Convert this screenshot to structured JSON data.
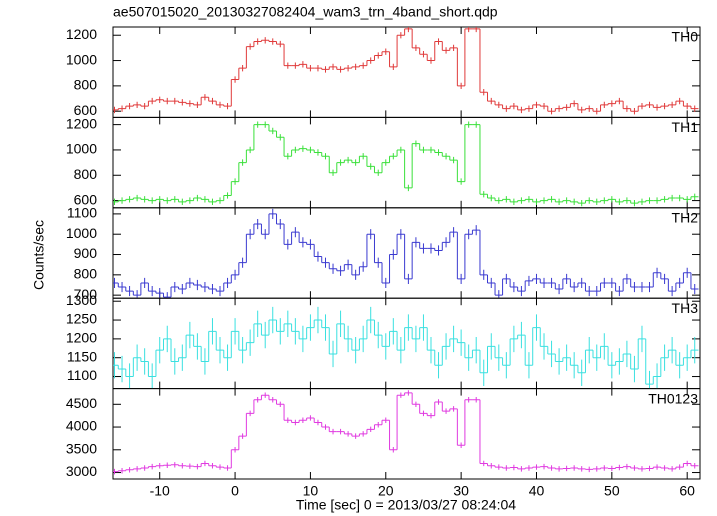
{
  "chart_data": [
    {
      "type": "step",
      "title": "ae507015020_20130327082404_wam3_trn_4band_short.qdp",
      "label": "TH0",
      "color": "#e03a3a",
      "yerr": 25,
      "x": [
        -16,
        -15,
        -14,
        -13,
        -12,
        -11,
        -10,
        -9,
        -8,
        -7,
        -6,
        -5,
        -4,
        -3,
        -2,
        -1,
        0,
        1,
        2,
        3,
        4,
        5,
        6,
        7,
        8,
        9,
        10,
        11,
        12,
        13,
        14,
        15,
        16,
        17,
        18,
        19,
        20,
        21,
        22,
        23,
        24,
        25,
        26,
        27,
        28,
        29,
        30,
        31,
        32,
        33,
        34,
        35,
        36,
        37,
        38,
        39,
        40,
        41,
        42,
        43,
        44,
        45,
        46,
        47,
        48,
        49,
        50,
        51,
        52,
        53,
        54,
        55,
        56,
        57,
        58,
        59,
        60,
        61
      ],
      "values": [
        610,
        620,
        640,
        650,
        640,
        680,
        690,
        680,
        680,
        670,
        660,
        650,
        710,
        680,
        650,
        640,
        850,
        940,
        1110,
        1150,
        1160,
        1150,
        1130,
        960,
        960,
        970,
        940,
        940,
        930,
        950,
        930,
        940,
        950,
        960,
        1000,
        1040,
        1070,
        950,
        1200,
        1250,
        1100,
        1050,
        1000,
        1150,
        1080,
        1100,
        800,
        1250,
        1250,
        750,
        680,
        650,
        620,
        640,
        610,
        620,
        650,
        640,
        600,
        620,
        630,
        660,
        610,
        620,
        600,
        650,
        660,
        680,
        620,
        600,
        640,
        650,
        630,
        640,
        650,
        680,
        640,
        620
      ],
      "xlim": [
        -16.2,
        61.7
      ],
      "ylim": [
        551,
        1265
      ],
      "yticks": [
        600,
        800,
        1000,
        1200
      ]
    },
    {
      "type": "step",
      "label": "TH1",
      "color": "#3ae03a",
      "yerr": 25,
      "x": [
        -16,
        -15,
        -14,
        -13,
        -12,
        -11,
        -10,
        -9,
        -8,
        -7,
        -6,
        -5,
        -4,
        -3,
        -2,
        -1,
        0,
        1,
        2,
        3,
        4,
        5,
        6,
        7,
        8,
        9,
        10,
        11,
        12,
        13,
        14,
        15,
        16,
        17,
        18,
        19,
        20,
        21,
        22,
        23,
        24,
        25,
        26,
        27,
        28,
        29,
        30,
        31,
        32,
        33,
        34,
        35,
        36,
        37,
        38,
        39,
        40,
        41,
        42,
        43,
        44,
        45,
        46,
        47,
        48,
        49,
        50,
        51,
        52,
        53,
        54,
        55,
        56,
        57,
        58,
        59,
        60,
        61
      ],
      "values": [
        590,
        600,
        610,
        620,
        610,
        600,
        610,
        600,
        610,
        590,
        600,
        620,
        610,
        590,
        600,
        640,
        750,
        900,
        1000,
        1200,
        1200,
        1150,
        1100,
        950,
        1000,
        1010,
        1000,
        980,
        950,
        820,
        900,
        920,
        900,
        950,
        870,
        820,
        900,
        950,
        1000,
        700,
        1050,
        1000,
        1000,
        980,
        950,
        920,
        750,
        1200,
        1200,
        650,
        620,
        600,
        610,
        590,
        600,
        610,
        590,
        600,
        610,
        590,
        600,
        590,
        580,
        600,
        590,
        600,
        610,
        590,
        600,
        580,
        590,
        600,
        600,
        610,
        620,
        620,
        610,
        630
      ],
      "xlim": [
        -16.2,
        61.7
      ],
      "ylim": [
        543,
        1257
      ],
      "yticks": [
        600,
        800,
        1000,
        1200
      ]
    },
    {
      "type": "step",
      "label": "TH2",
      "color": "#3a3ad0",
      "yerr": 25,
      "ylabel": "Counts/sec",
      "x": [
        -16,
        -15,
        -14,
        -13,
        -12,
        -11,
        -10,
        -9,
        -8,
        -7,
        -6,
        -5,
        -4,
        -3,
        -2,
        -1,
        0,
        1,
        2,
        3,
        4,
        5,
        6,
        7,
        8,
        9,
        10,
        11,
        12,
        13,
        14,
        15,
        16,
        17,
        18,
        19,
        20,
        21,
        22,
        23,
        24,
        25,
        26,
        27,
        28,
        29,
        30,
        31,
        32,
        33,
        34,
        35,
        36,
        37,
        38,
        39,
        40,
        41,
        42,
        43,
        44,
        45,
        46,
        47,
        48,
        49,
        50,
        51,
        52,
        53,
        54,
        55,
        56,
        57,
        58,
        59,
        60,
        61
      ],
      "values": [
        760,
        740,
        720,
        700,
        760,
        720,
        710,
        690,
        740,
        730,
        760,
        750,
        740,
        730,
        720,
        760,
        800,
        860,
        1000,
        1050,
        1000,
        1100,
        1050,
        950,
        1010,
        960,
        950,
        890,
        860,
        830,
        820,
        850,
        800,
        840,
        1000,
        860,
        760,
        900,
        1000,
        780,
        960,
        930,
        930,
        920,
        960,
        1010,
        780,
        1000,
        1020,
        800,
        760,
        700,
        780,
        740,
        720,
        770,
        780,
        760,
        760,
        730,
        780,
        740,
        760,
        720,
        720,
        760,
        760,
        720,
        780,
        740,
        740,
        740,
        810,
        780,
        720,
        760,
        810,
        730
      ],
      "xlim": [
        -16.2,
        61.7
      ],
      "ylim": [
        685,
        1130
      ],
      "yticks": [
        700,
        800,
        900,
        1000,
        1100
      ]
    },
    {
      "type": "step",
      "label": "TH3",
      "color": "#3ae0e0",
      "yerr": 35,
      "x": [
        -16,
        -15,
        -14,
        -13,
        -12,
        -11,
        -10,
        -9,
        -8,
        -7,
        -6,
        -5,
        -4,
        -3,
        -2,
        -1,
        0,
        1,
        2,
        3,
        4,
        5,
        6,
        7,
        8,
        9,
        10,
        11,
        12,
        13,
        14,
        15,
        16,
        17,
        18,
        19,
        20,
        21,
        22,
        23,
        24,
        25,
        26,
        27,
        28,
        29,
        30,
        31,
        32,
        33,
        34,
        35,
        36,
        37,
        38,
        39,
        40,
        41,
        42,
        43,
        44,
        45,
        46,
        47,
        48,
        49,
        50,
        51,
        52,
        53,
        54,
        55,
        56,
        57,
        58,
        59,
        60,
        61
      ],
      "values": [
        1130,
        1120,
        1100,
        1150,
        1140,
        1100,
        1170,
        1200,
        1140,
        1150,
        1210,
        1180,
        1140,
        1220,
        1170,
        1150,
        1220,
        1170,
        1190,
        1240,
        1210,
        1250,
        1220,
        1240,
        1220,
        1200,
        1230,
        1250,
        1230,
        1160,
        1240,
        1200,
        1170,
        1200,
        1250,
        1210,
        1180,
        1220,
        1170,
        1230,
        1200,
        1230,
        1170,
        1130,
        1180,
        1200,
        1190,
        1150,
        1170,
        1110,
        1180,
        1150,
        1130,
        1200,
        1210,
        1130,
        1230,
        1180,
        1160,
        1140,
        1150,
        1130,
        1110,
        1170,
        1150,
        1180,
        1130,
        1140,
        1160,
        1120,
        1200,
        1080,
        1100,
        1150,
        1170,
        1130,
        1150,
        1170
      ],
      "xlim": [
        -16.2,
        61.7
      ],
      "ylim": [
        1068,
        1308
      ],
      "yticks": [
        1100,
        1150,
        1200,
        1250,
        1300
      ]
    },
    {
      "type": "step",
      "label": "TH0123",
      "color": "#e03ae0",
      "yerr": 60,
      "xlabel": "Time [sec] 0 = 2013/03/27 08:24:04",
      "x": [
        -16,
        -15,
        -14,
        -13,
        -12,
        -11,
        -10,
        -9,
        -8,
        -7,
        -6,
        -5,
        -4,
        -3,
        -2,
        -1,
        0,
        1,
        2,
        3,
        4,
        5,
        6,
        7,
        8,
        9,
        10,
        11,
        12,
        13,
        14,
        15,
        16,
        17,
        18,
        19,
        20,
        21,
        22,
        23,
        24,
        25,
        26,
        27,
        28,
        29,
        30,
        31,
        32,
        33,
        34,
        35,
        36,
        37,
        38,
        39,
        40,
        41,
        42,
        43,
        44,
        45,
        46,
        47,
        48,
        49,
        50,
        51,
        52,
        53,
        54,
        55,
        56,
        57,
        58,
        59,
        60,
        61
      ],
      "values": [
        3020,
        3040,
        3060,
        3080,
        3100,
        3130,
        3150,
        3160,
        3170,
        3150,
        3140,
        3130,
        3200,
        3150,
        3120,
        3100,
        3500,
        3800,
        4300,
        4600,
        4700,
        4600,
        4500,
        4150,
        4100,
        4150,
        4200,
        4100,
        4000,
        3900,
        3900,
        3850,
        3800,
        3850,
        3950,
        4050,
        4150,
        3500,
        4700,
        4750,
        4500,
        4300,
        4250,
        4550,
        4350,
        4400,
        3600,
        4600,
        4600,
        3200,
        3150,
        3120,
        3100,
        3110,
        3080,
        3100,
        3120,
        3130,
        3100,
        3080,
        3090,
        3100,
        3080,
        3070,
        3080,
        3100,
        3090,
        3110,
        3130,
        3100,
        3080,
        3090,
        3120,
        3100,
        3080,
        3120,
        3200,
        3150
      ],
      "xlim": [
        -16.2,
        61.7
      ],
      "ylim": [
        2858,
        4845
      ],
      "yticks": [
        3000,
        3500,
        4000,
        4500
      ],
      "xticks": [
        -10,
        0,
        10,
        20,
        30,
        40,
        50,
        60
      ]
    }
  ]
}
